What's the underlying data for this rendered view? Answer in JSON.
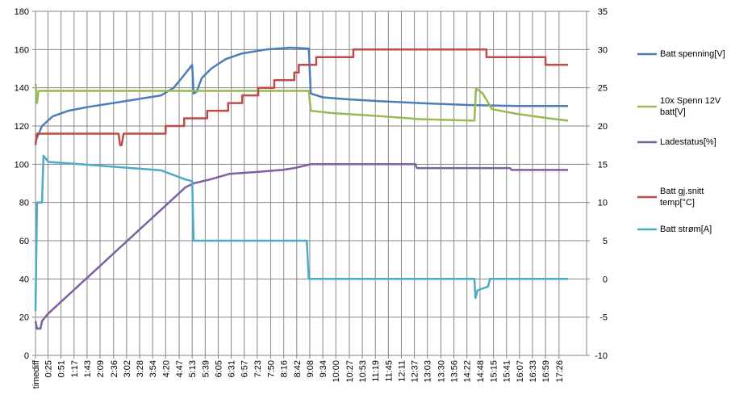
{
  "chart_data": {
    "type": "line",
    "xlim": [
      0,
      1101
    ],
    "xticks": [
      {
        "value": 0,
        "label": "timediff"
      },
      {
        "value": 25,
        "label": "0:25"
      },
      {
        "value": 51,
        "label": "0:51"
      },
      {
        "value": 77,
        "label": "1:17"
      },
      {
        "value": 103,
        "label": "1:43"
      },
      {
        "value": 129,
        "label": "2:09"
      },
      {
        "value": 156,
        "label": "2:36"
      },
      {
        "value": 182,
        "label": "3:02"
      },
      {
        "value": 208,
        "label": "3:28"
      },
      {
        "value": 234,
        "label": "3:54"
      },
      {
        "value": 260,
        "label": "4:20"
      },
      {
        "value": 287,
        "label": "4:47"
      },
      {
        "value": 313,
        "label": "5:13"
      },
      {
        "value": 339,
        "label": "5:39"
      },
      {
        "value": 365,
        "label": "6:05"
      },
      {
        "value": 391,
        "label": "6:31"
      },
      {
        "value": 417,
        "label": "6:57"
      },
      {
        "value": 443,
        "label": "7:23"
      },
      {
        "value": 470,
        "label": "7:50"
      },
      {
        "value": 496,
        "label": "8:16"
      },
      {
        "value": 522,
        "label": "8:42"
      },
      {
        "value": 548,
        "label": "9:08"
      },
      {
        "value": 574,
        "label": "9:34"
      },
      {
        "value": 600,
        "label": "10:00"
      },
      {
        "value": 627,
        "label": "10:27"
      },
      {
        "value": 653,
        "label": "10:53"
      },
      {
        "value": 679,
        "label": "11:19"
      },
      {
        "value": 705,
        "label": "11:45"
      },
      {
        "value": 731,
        "label": "12:11"
      },
      {
        "value": 757,
        "label": "12:37"
      },
      {
        "value": 783,
        "label": "13:03"
      },
      {
        "value": 810,
        "label": "13:30"
      },
      {
        "value": 836,
        "label": "13:56"
      },
      {
        "value": 862,
        "label": "14:22"
      },
      {
        "value": 888,
        "label": "14:48"
      },
      {
        "value": 915,
        "label": "15:15"
      },
      {
        "value": 941,
        "label": "15:41"
      },
      {
        "value": 967,
        "label": "16:07"
      },
      {
        "value": 993,
        "label": "16:33"
      },
      {
        "value": 1019,
        "label": "16:59"
      },
      {
        "value": 1046,
        "label": "17:26"
      }
    ],
    "ylim": [
      0,
      180
    ],
    "yticks": [
      0,
      20,
      40,
      60,
      80,
      100,
      120,
      140,
      160,
      180
    ],
    "y2lim": [
      -10,
      35
    ],
    "y2ticks": [
      -10,
      -5,
      0,
      5,
      10,
      15,
      20,
      25,
      30,
      35
    ],
    "grid": true,
    "legend": "right",
    "series": [
      {
        "name": "Batt spenning[V]",
        "color": "#4a7ebb",
        "x": [
          0,
          13,
          34,
          66,
          106,
          155,
          203,
          251,
          276,
          292,
          313,
          316,
          322,
          332,
          351,
          380,
          413,
          461,
          509,
          546,
          550,
          574,
          622,
          687,
          767,
          864,
          961,
          1064
        ],
        "values": [
          112,
          120,
          125,
          128,
          130,
          132,
          134,
          136,
          140,
          145,
          152,
          137,
          138,
          145,
          150,
          155,
          158,
          160,
          161,
          160.5,
          137,
          135,
          134,
          133,
          132,
          131,
          130.5,
          130.5
        ]
      },
      {
        "name": "10x Spenn 12V batt[V]",
        "color": "#98b954",
        "axis": "y2",
        "x": [
          0,
          3,
          6,
          546,
          550,
          590,
          687,
          767,
          877,
          880,
          893,
          912,
          961,
          1025,
          1064
        ],
        "values": [
          25.5,
          23,
          24.6,
          24.6,
          22,
          21.7,
          21.3,
          20.9,
          20.7,
          24.9,
          24.3,
          22.2,
          21.6,
          21,
          20.7
        ]
      },
      {
        "name": "Ladestatus[%]",
        "color": "#7d60a0",
        "x": [
          0,
          3,
          10,
          13,
          26,
          300,
          316,
          348,
          388,
          445,
          493,
          517,
          550,
          759,
          762,
          948,
          951,
          1064
        ],
        "values": [
          18,
          14,
          14,
          18,
          22,
          88,
          90,
          92,
          95,
          96,
          97,
          98,
          100,
          100,
          98,
          98,
          97,
          97
        ]
      },
      {
        "name": "Batt gj.snitt temp[°C]",
        "color": "#be4b48",
        "axis": "y2",
        "x": [
          0,
          3,
          166,
          169,
          172,
          176,
          260,
          260,
          297,
          297,
          343,
          343,
          385,
          385,
          413,
          413,
          445,
          445,
          477,
          477,
          517,
          517,
          526,
          526,
          561,
          561,
          635,
          635,
          901,
          901,
          1019,
          1019,
          1064
        ],
        "values": [
          17.5,
          19,
          19,
          17.5,
          17.5,
          19,
          19,
          20,
          20,
          21,
          21,
          22,
          22,
          23,
          23,
          24,
          24,
          25,
          25,
          26,
          26,
          27,
          27,
          28,
          28,
          29,
          29,
          30,
          30,
          29,
          29,
          28,
          28
        ]
      },
      {
        "name": "Batt strøm[A]",
        "color": "#4bacc6",
        "axis": "y2",
        "x": [
          0,
          3,
          13,
          16,
          26,
          90,
          171,
          251,
          300,
          313,
          316,
          542,
          546,
          877,
          879,
          883,
          904,
          908,
          1064
        ],
        "values": [
          -4.2,
          10,
          10,
          16.1,
          15.3,
          15,
          14.6,
          14.2,
          13,
          12.8,
          5,
          5,
          0,
          0,
          -2.5,
          -1.5,
          -1,
          0,
          0
        ]
      }
    ]
  }
}
